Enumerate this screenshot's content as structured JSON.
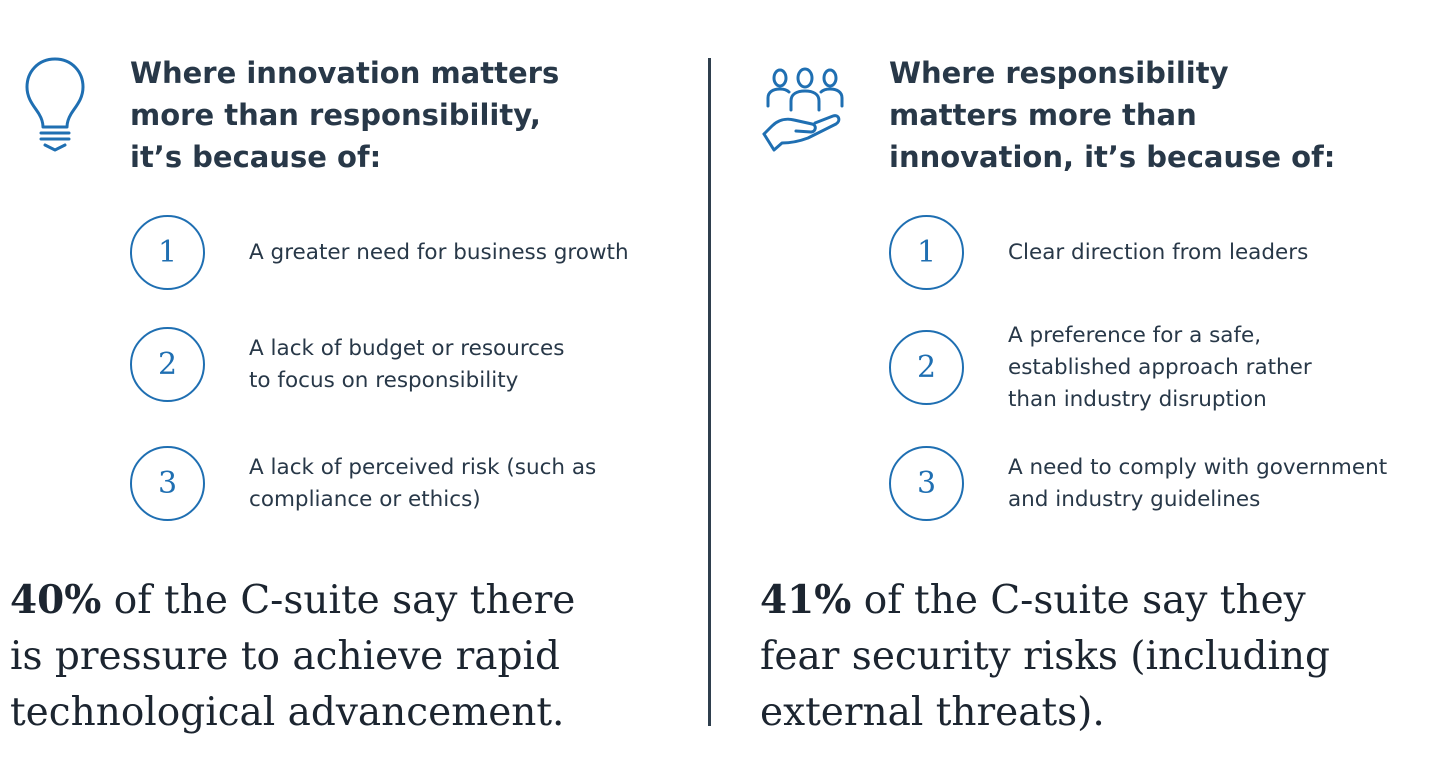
{
  "left": {
    "icon": "lightbulb-icon",
    "heading": [
      "Where innovation matters",
      "more than responsibility,",
      "it’s because of:"
    ],
    "items": [
      {
        "number": "1",
        "lines": [
          "A greater need for business growth"
        ]
      },
      {
        "number": "2",
        "lines": [
          "A lack of budget or resources",
          "to focus on responsibility"
        ]
      },
      {
        "number": "3",
        "lines": [
          "A lack of perceived risk (such as",
          "compliance or ethics)"
        ]
      }
    ],
    "stat": {
      "percent": "40%",
      "lines": [
        " of the C-suite say there",
        "is pressure to achieve rapid",
        "technological advancement."
      ]
    }
  },
  "right": {
    "icon": "people-in-hand-icon",
    "heading": [
      "Where responsibility",
      "matters more than",
      "innovation, it’s because of:"
    ],
    "items": [
      {
        "number": "1",
        "lines": [
          "Clear direction from leaders"
        ]
      },
      {
        "number": "2",
        "lines": [
          "A preference for a safe,",
          "established approach rather",
          "than industry disruption"
        ]
      },
      {
        "number": "3",
        "lines": [
          "A need to comply with government",
          "and industry guidelines"
        ]
      }
    ],
    "stat": {
      "percent": "41%",
      "lines": [
        " of the C-suite say they",
        "fear security risks (including",
        "external threats)."
      ]
    }
  },
  "colors": {
    "accent": "#1f6fb2",
    "heading": "#283848",
    "divider": "#2f3f4e"
  }
}
